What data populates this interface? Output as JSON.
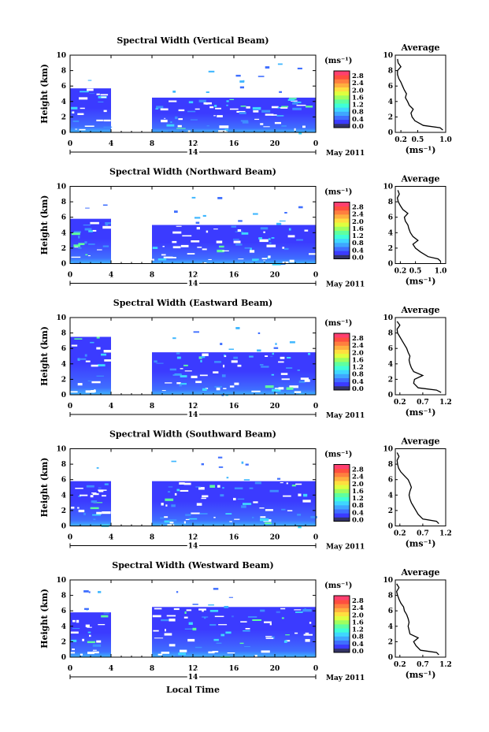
{
  "figure": {
    "xlabel": "Local Time",
    "date_label": "May 2011",
    "colorbar_unit": "(ms⁻¹)",
    "colorbar_ticks": [
      "2.8",
      "2.4",
      "2.0",
      "1.6",
      "1.2",
      "0.8",
      "0.4",
      "0.0"
    ],
    "colorbar_colors": [
      "#333366",
      "#3b3bff",
      "#3f6fff",
      "#3fa7ff",
      "#3fd7ff",
      "#3fffd7",
      "#5fff9f",
      "#9fff5f",
      "#dfff3f",
      "#ffdf3f",
      "#ffaf3f",
      "#ff7f3f",
      "#ff4f3f",
      "#ff3f6f"
    ],
    "average_title": "Average",
    "average_unit": "(ms⁻¹)"
  },
  "chart_data": [
    {
      "type": "heatmap",
      "title": "Spectral Width (Vertical Beam)",
      "xlabel": "Local Time",
      "ylabel": "Height (km)",
      "xlim": [
        0,
        24
      ],
      "ylim": [
        0,
        10
      ],
      "xticks": [
        "0",
        "4",
        "8",
        "12",
        "16",
        "20",
        "0"
      ],
      "yticks": [
        "0",
        "2",
        "4",
        "6",
        "8",
        "10"
      ],
      "day_label": "14",
      "data_gap_hours": [
        4,
        8
      ],
      "echo_top_km": {
        "before_gap": 5.7,
        "after_gap": 4.5
      },
      "average_profile": {
        "xlabel": "(ms⁻¹)",
        "xlim": [
          0.1,
          1.0
        ],
        "xtick_labels": [
          "0.2",
          "0.5",
          "1.0"
        ],
        "xtick_values": [
          0.2,
          0.5,
          1.0
        ],
        "yticks": [
          "0",
          "2",
          "4",
          "6",
          "8",
          "10"
        ],
        "x": [
          0.95,
          0.9,
          0.6,
          0.45,
          0.4,
          0.38,
          0.42,
          0.35,
          0.32,
          0.28,
          0.3,
          0.26,
          0.23,
          0.2,
          0.16,
          0.14,
          0.14,
          0.2,
          0.15,
          0.14
        ],
        "height": [
          0.3,
          0.6,
          0.9,
          1.5,
          2.0,
          2.5,
          3.0,
          3.5,
          4.0,
          4.5,
          5.0,
          5.5,
          6.0,
          6.5,
          7.0,
          7.5,
          8.0,
          8.5,
          9.0,
          9.5
        ]
      }
    },
    {
      "type": "heatmap",
      "title": "Spectral Width (Northward Beam)",
      "xlabel": "Local Time",
      "ylabel": "Height (km)",
      "xlim": [
        0,
        24
      ],
      "ylim": [
        0,
        10
      ],
      "xticks": [
        "0",
        "4",
        "8",
        "12",
        "16",
        "20",
        "0"
      ],
      "yticks": [
        "0",
        "2",
        "4",
        "6",
        "8",
        "10"
      ],
      "day_label": "14",
      "data_gap_hours": [
        4,
        8
      ],
      "echo_top_km": {
        "before_gap": 5.8,
        "after_gap": 5.0
      },
      "average_profile": {
        "xlabel": "(ms⁻¹)",
        "xlim": [
          0.1,
          1.1
        ],
        "xtick_labels": [
          "0.2",
          "0.5",
          "1.0"
        ],
        "xtick_values": [
          0.2,
          0.5,
          1.0
        ],
        "yticks": [
          "0",
          "2",
          "4",
          "6",
          "8",
          "10"
        ],
        "x": [
          1.0,
          0.95,
          0.75,
          0.6,
          0.5,
          0.45,
          0.55,
          0.45,
          0.4,
          0.37,
          0.35,
          0.3,
          0.28,
          0.35,
          0.25,
          0.2,
          0.16,
          0.14,
          0.18,
          0.15
        ],
        "height": [
          0.3,
          0.6,
          0.9,
          1.5,
          2.0,
          2.5,
          3.0,
          3.5,
          4.0,
          4.5,
          5.0,
          5.5,
          6.0,
          6.5,
          7.0,
          7.5,
          8.0,
          8.5,
          9.0,
          9.5
        ]
      }
    },
    {
      "type": "heatmap",
      "title": "Spectral Width (Eastward Beam)",
      "xlabel": "Local Time",
      "ylabel": "Height (km)",
      "xlim": [
        0,
        24
      ],
      "ylim": [
        0,
        10
      ],
      "xticks": [
        "0",
        "4",
        "8",
        "12",
        "16",
        "20",
        "0"
      ],
      "yticks": [
        "0",
        "2",
        "4",
        "6",
        "8",
        "10"
      ],
      "day_label": "14",
      "data_gap_hours": [
        4,
        8
      ],
      "echo_top_km": {
        "before_gap": 7.5,
        "after_gap": 5.5
      },
      "average_profile": {
        "xlabel": "(ms⁻¹)",
        "xlim": [
          0.1,
          1.2
        ],
        "xtick_labels": [
          "0.2",
          "0.7",
          "1.2"
        ],
        "xtick_values": [
          0.2,
          0.7,
          1.2
        ],
        "yticks": [
          "0",
          "2",
          "4",
          "6",
          "8",
          "10"
        ],
        "x": [
          1.1,
          1.0,
          0.6,
          0.5,
          0.52,
          0.7,
          0.5,
          0.45,
          0.42,
          0.4,
          0.42,
          0.38,
          0.35,
          0.3,
          0.25,
          0.2,
          0.15,
          0.14,
          0.2,
          0.14
        ],
        "height": [
          0.3,
          0.6,
          0.9,
          1.5,
          2.0,
          2.5,
          3.0,
          3.5,
          4.0,
          4.5,
          5.0,
          5.5,
          6.0,
          6.5,
          7.0,
          7.5,
          8.0,
          8.5,
          9.0,
          9.5
        ]
      }
    },
    {
      "type": "heatmap",
      "title": "Spectral Width (Southward Beam)",
      "xlabel": "Local Time",
      "ylabel": "Height (km)",
      "xlim": [
        0,
        24
      ],
      "ylim": [
        0,
        10
      ],
      "xticks": [
        "0",
        "4",
        "8",
        "12",
        "16",
        "20",
        "0"
      ],
      "yticks": [
        "0",
        "2",
        "4",
        "6",
        "8",
        "10"
      ],
      "day_label": "14",
      "data_gap_hours": [
        4,
        8
      ],
      "echo_top_km": {
        "before_gap": 5.8,
        "after_gap": 5.8
      },
      "average_profile": {
        "xlabel": "(ms⁻¹)",
        "xlim": [
          0.1,
          1.2
        ],
        "xtick_labels": [
          "0.2",
          "0.7",
          "1.2"
        ],
        "xtick_values": [
          0.2,
          0.7,
          1.2
        ],
        "yticks": [
          "0",
          "2",
          "4",
          "6",
          "8",
          "10"
        ],
        "x": [
          1.05,
          1.0,
          0.7,
          0.6,
          0.55,
          0.5,
          0.45,
          0.42,
          0.4,
          0.42,
          0.45,
          0.42,
          0.38,
          0.3,
          0.22,
          0.17,
          0.15,
          0.14,
          0.18,
          0.14
        ],
        "height": [
          0.3,
          0.6,
          0.9,
          1.5,
          2.0,
          2.5,
          3.0,
          3.5,
          4.0,
          4.5,
          5.0,
          5.5,
          6.0,
          6.5,
          7.0,
          7.5,
          8.0,
          8.5,
          9.0,
          9.5
        ]
      }
    },
    {
      "type": "heatmap",
      "title": "Spectral Width (Westward Beam)",
      "xlabel": "Local Time",
      "ylabel": "Height (km)",
      "xlim": [
        0,
        24
      ],
      "ylim": [
        0,
        10
      ],
      "xticks": [
        "0",
        "4",
        "8",
        "12",
        "16",
        "20",
        "0"
      ],
      "yticks": [
        "0",
        "2",
        "4",
        "6",
        "8",
        "10"
      ],
      "day_label": "14",
      "data_gap_hours": [
        4,
        8
      ],
      "echo_top_km": {
        "before_gap": 5.8,
        "after_gap": 6.5
      },
      "average_profile": {
        "xlabel": "(ms⁻¹)",
        "xlim": [
          0.1,
          1.2
        ],
        "xtick_labels": [
          "0.2",
          "0.7",
          "1.2"
        ],
        "xtick_values": [
          0.2,
          0.7,
          1.2
        ],
        "yticks": [
          "0",
          "2",
          "4",
          "6",
          "8",
          "10"
        ],
        "x": [
          1.05,
          1.0,
          0.65,
          0.55,
          0.5,
          0.6,
          0.42,
          0.4,
          0.38,
          0.4,
          0.38,
          0.35,
          0.3,
          0.28,
          0.22,
          0.18,
          0.15,
          0.13,
          0.18,
          0.13
        ],
        "height": [
          0.3,
          0.6,
          0.9,
          1.5,
          2.0,
          2.5,
          3.0,
          3.5,
          4.0,
          4.5,
          5.0,
          5.5,
          6.0,
          6.5,
          7.0,
          7.5,
          8.0,
          8.5,
          9.0,
          9.5
        ]
      }
    }
  ]
}
